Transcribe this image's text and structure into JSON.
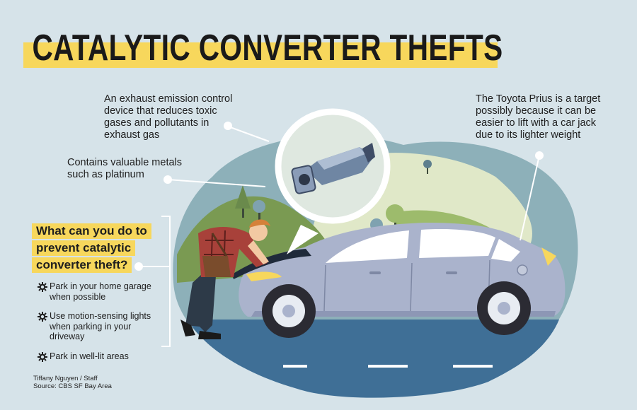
{
  "title": "CATALYTIC CONVERTER THEFTS",
  "annotations": {
    "emission": "An exhaust emission control device that reduces toxic gases and pollutants in exhaust gas",
    "metals": "Contains valuable metals such as platinum",
    "prius": "The Toyota Prius is a target possibly because it can be easier to lift with a car jack due to its lighter weight"
  },
  "prevention": {
    "question_lines": [
      "What can you do to",
      "prevent catalytic",
      "converter theft?"
    ],
    "tips": [
      "Park in your home garage when possible",
      "Use motion-sensing lights when parking in your driveway",
      "Park in well-lit areas"
    ],
    "tip_icon": "gear-icon"
  },
  "credit": {
    "byline": "Tiffany Nguyen / Staff",
    "source": "Source: CBS SF Bay Area"
  },
  "colors": {
    "accent_yellow": "#f7d75c",
    "background": "#d6e3e9",
    "blob": "#8db0b9",
    "road": "#3f6f96",
    "car_body": "#aab3cc"
  }
}
